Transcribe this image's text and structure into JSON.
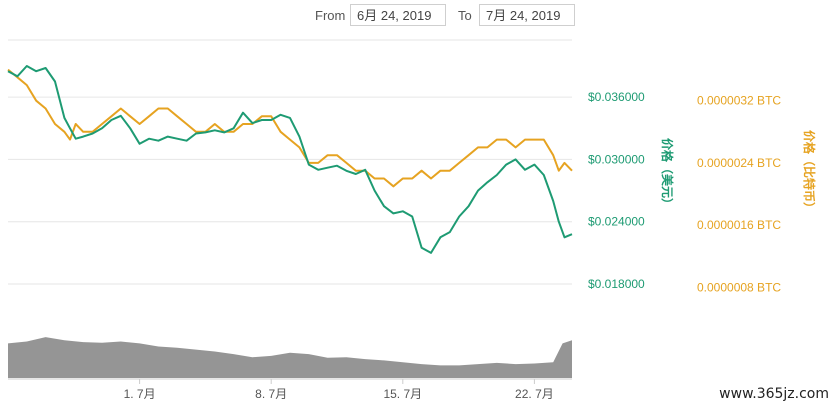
{
  "header": {
    "from_label": "From",
    "from_date": "6月 24, 2019",
    "to_label": "To",
    "to_date": "7月 24, 2019"
  },
  "watermark": "www.365jz.com",
  "colors": {
    "usd": "#1e9b73",
    "btc": "#e6a321",
    "volume": "#8a8a8a",
    "grid": "#e6e6e6"
  },
  "chart_data": {
    "type": "line",
    "x_range": [
      0,
      30
    ],
    "x_ticks": [
      {
        "x": 7,
        "label": "1. 7月"
      },
      {
        "x": 14,
        "label": "8. 7月"
      },
      {
        "x": 21,
        "label": "15. 7月"
      },
      {
        "x": 28,
        "label": "22. 7月"
      }
    ],
    "y_left": {
      "label": "价格（美元）",
      "ticks": [
        "$0.036000",
        "$0.030000",
        "$0.024000",
        "$0.018000"
      ],
      "tick_values": [
        0.036,
        0.03,
        0.024,
        0.018
      ],
      "range": [
        0.0155,
        0.0415
      ]
    },
    "y_right": {
      "label": "价格（比特币）",
      "ticks": [
        "0.0000032 BTC",
        "0.0000024 BTC",
        "0.0000016 BTC",
        "0.0000008 BTC"
      ],
      "tick_values": [
        3.2e-06,
        2.4e-06,
        1.6e-06,
        8e-07
      ],
      "range": [
        5.1e-07,
        3.98e-06
      ]
    },
    "series": [
      {
        "axis": "left",
        "x": [
          0,
          0.5,
          1,
          1.5,
          2,
          2.5,
          3,
          3.3,
          3.6,
          4,
          4.5,
          5,
          5.5,
          6,
          6.5,
          7,
          7.5,
          8,
          8.5,
          9,
          9.5,
          10,
          10.5,
          11,
          11.5,
          12,
          12.5,
          13,
          13.5,
          14,
          14.5,
          15,
          15.5,
          16,
          16.5,
          17,
          17.5,
          18,
          18.5,
          19,
          19.5,
          20,
          20.5,
          21,
          21.5,
          22,
          22.5,
          23,
          23.5,
          24,
          24.5,
          25,
          25.5,
          26,
          26.5,
          27,
          27.5,
          28,
          28.5,
          29,
          29.3,
          29.6,
          30
        ],
        "values": [
          0.0385,
          0.038,
          0.039,
          0.0385,
          0.0388,
          0.0375,
          0.034,
          0.033,
          0.032,
          0.0322,
          0.0325,
          0.033,
          0.0338,
          0.0342,
          0.033,
          0.0315,
          0.032,
          0.0318,
          0.0322,
          0.032,
          0.0318,
          0.0325,
          0.0326,
          0.0328,
          0.0326,
          0.033,
          0.0345,
          0.0335,
          0.0338,
          0.0338,
          0.0343,
          0.034,
          0.0322,
          0.0295,
          0.029,
          0.0292,
          0.0294,
          0.0289,
          0.0286,
          0.029,
          0.027,
          0.0255,
          0.0248,
          0.025,
          0.0245,
          0.0215,
          0.021,
          0.0225,
          0.023,
          0.0245,
          0.0255,
          0.027,
          0.0278,
          0.0285,
          0.0295,
          0.03,
          0.029,
          0.0295,
          0.0285,
          0.026,
          0.024,
          0.0225,
          0.0228
        ]
      },
      {
        "axis": "right",
        "x": [
          0,
          0.5,
          1,
          1.5,
          2,
          2.5,
          3,
          3.3,
          3.6,
          4,
          4.5,
          5,
          5.5,
          6,
          6.5,
          7,
          7.5,
          8,
          8.5,
          9,
          9.5,
          10,
          10.5,
          11,
          11.5,
          12,
          12.5,
          13,
          13.5,
          14,
          14.5,
          15,
          15.5,
          16,
          16.5,
          17,
          17.5,
          18,
          18.5,
          19,
          19.5,
          20,
          20.5,
          21,
          21.5,
          22,
          22.5,
          23,
          23.5,
          24,
          24.5,
          25,
          25.5,
          26,
          26.5,
          27,
          27.5,
          28,
          28.5,
          29,
          29.3,
          29.6,
          30
        ],
        "values": [
          3.6e-06,
          3.5e-06,
          3.4e-06,
          3.2e-06,
          3.1e-06,
          2.9e-06,
          2.8e-06,
          2.7e-06,
          2.9e-06,
          2.8e-06,
          2.8e-06,
          2.9e-06,
          3e-06,
          3.1e-06,
          3e-06,
          2.9e-06,
          3e-06,
          3.1e-06,
          3.1e-06,
          3e-06,
          2.9e-06,
          2.8e-06,
          2.8e-06,
          2.9e-06,
          2.8e-06,
          2.8e-06,
          2.9e-06,
          2.9e-06,
          3e-06,
          3e-06,
          2.8e-06,
          2.7e-06,
          2.6e-06,
          2.4e-06,
          2.4e-06,
          2.5e-06,
          2.5e-06,
          2.4e-06,
          2.3e-06,
          2.3e-06,
          2.2e-06,
          2.2e-06,
          2.1e-06,
          2.2e-06,
          2.2e-06,
          2.3e-06,
          2.2e-06,
          2.3e-06,
          2.3e-06,
          2.4e-06,
          2.5e-06,
          2.6e-06,
          2.6e-06,
          2.7e-06,
          2.7e-06,
          2.6e-06,
          2.7e-06,
          2.7e-06,
          2.7e-06,
          2.5e-06,
          2.3e-06,
          2.4e-06,
          2.3e-06
        ]
      }
    ],
    "volume": {
      "x": [
        0,
        1,
        2,
        3,
        4,
        5,
        6,
        7,
        8,
        9,
        10,
        11,
        12,
        13,
        14,
        15,
        16,
        17,
        18,
        19,
        20,
        21,
        22,
        23,
        24,
        25,
        26,
        27,
        28,
        29,
        29.5,
        30
      ],
      "values": [
        0.55,
        0.58,
        0.65,
        0.6,
        0.57,
        0.56,
        0.58,
        0.55,
        0.5,
        0.48,
        0.45,
        0.42,
        0.38,
        0.33,
        0.35,
        0.4,
        0.38,
        0.32,
        0.33,
        0.3,
        0.28,
        0.25,
        0.22,
        0.2,
        0.2,
        0.22,
        0.24,
        0.22,
        0.23,
        0.25,
        0.55,
        0.6
      ],
      "max": 1
    },
    "grid": "horizontal"
  }
}
